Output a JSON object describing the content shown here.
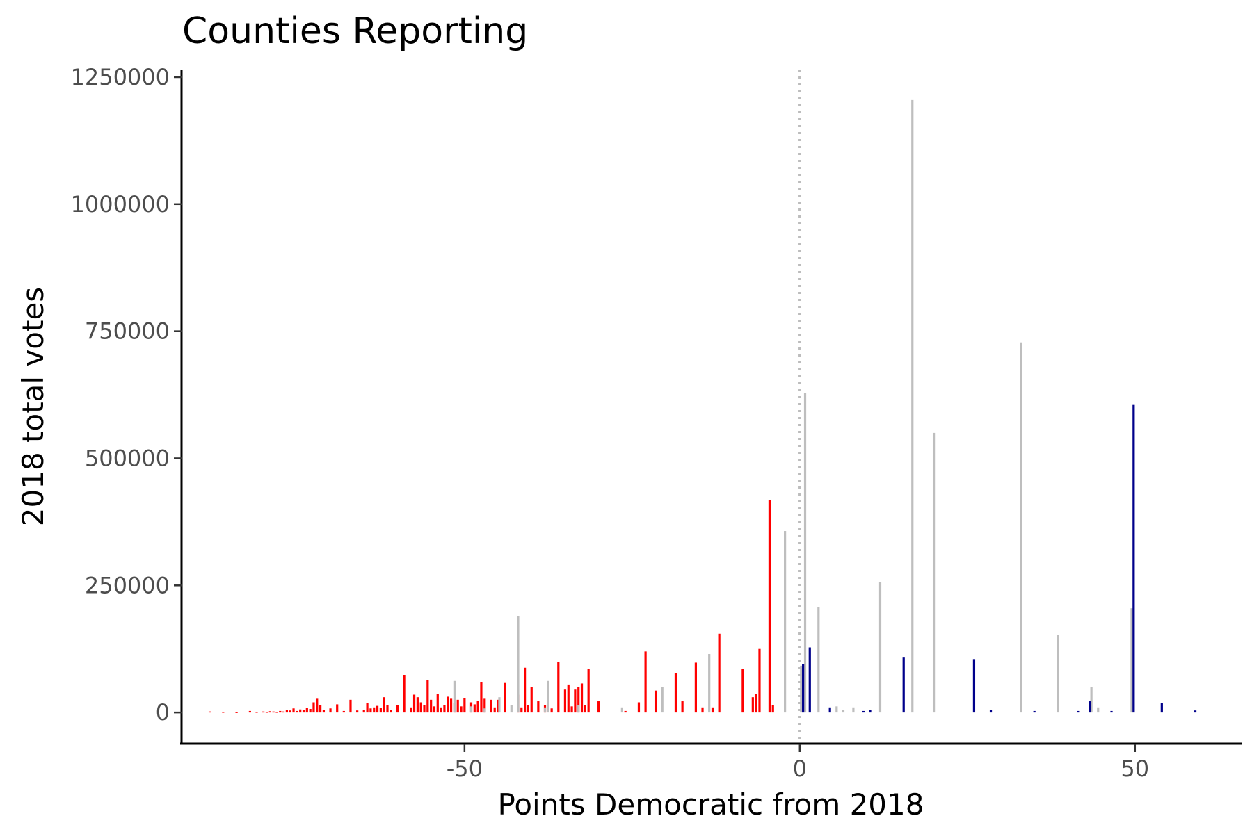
{
  "chart_data": {
    "type": "bar",
    "title": "Counties Reporting",
    "xlabel": "Points Democratic from 2018",
    "ylabel": "2018 total votes",
    "xlim": [
      -92,
      66
    ],
    "ylim": [
      -60000,
      1265000
    ],
    "x_ticks": [
      -50,
      0,
      50
    ],
    "x_tick_labels": [
      "-50",
      "0",
      "50"
    ],
    "y_ticks": [
      0,
      250000,
      500000,
      750000,
      1000000,
      1250000
    ],
    "y_tick_labels": [
      "0",
      "250000",
      "500000",
      "750000",
      "1000000",
      "1250000"
    ],
    "reference_line": {
      "x": 0,
      "style": "dotted"
    },
    "grid": false,
    "legend": "none",
    "series": [
      {
        "color": "#ff0000",
        "points": [
          {
            "x": -88,
            "y": 2000
          },
          {
            "x": -86,
            "y": 1500
          },
          {
            "x": -84,
            "y": 1000
          },
          {
            "x": -82,
            "y": 3000
          },
          {
            "x": -81,
            "y": 1500
          },
          {
            "x": -80,
            "y": 2000
          },
          {
            "x": -79.5,
            "y": 1500
          },
          {
            "x": -79,
            "y": 2500
          },
          {
            "x": -78.5,
            "y": 2000
          },
          {
            "x": -78,
            "y": 1500
          },
          {
            "x": -77.5,
            "y": 3000
          },
          {
            "x": -77,
            "y": 2000
          },
          {
            "x": -76.5,
            "y": 5000
          },
          {
            "x": -76,
            "y": 4000
          },
          {
            "x": -75.5,
            "y": 8000
          },
          {
            "x": -75,
            "y": 3000
          },
          {
            "x": -74.5,
            "y": 6000
          },
          {
            "x": -74,
            "y": 5000
          },
          {
            "x": -73.5,
            "y": 9000
          },
          {
            "x": -73,
            "y": 7000
          },
          {
            "x": -72.5,
            "y": 20000
          },
          {
            "x": -72,
            "y": 27000
          },
          {
            "x": -71.5,
            "y": 15000
          },
          {
            "x": -71,
            "y": 5000
          },
          {
            "x": -70,
            "y": 8000
          },
          {
            "x": -69,
            "y": 16000
          },
          {
            "x": -68,
            "y": 3000
          },
          {
            "x": -67,
            "y": 25000
          },
          {
            "x": -66,
            "y": 4000
          },
          {
            "x": -65,
            "y": 5000
          },
          {
            "x": -64.5,
            "y": 18000
          },
          {
            "x": -64,
            "y": 8000
          },
          {
            "x": -63.5,
            "y": 10000
          },
          {
            "x": -63,
            "y": 13000
          },
          {
            "x": -62.5,
            "y": 9000
          },
          {
            "x": -62,
            "y": 30000
          },
          {
            "x": -61.5,
            "y": 14000
          },
          {
            "x": -61,
            "y": 5000
          },
          {
            "x": -60,
            "y": 15000
          },
          {
            "x": -59,
            "y": 74000
          },
          {
            "x": -58,
            "y": 10000
          },
          {
            "x": -57.5,
            "y": 35000
          },
          {
            "x": -57,
            "y": 30000
          },
          {
            "x": -56.5,
            "y": 20000
          },
          {
            "x": -56,
            "y": 15000
          },
          {
            "x": -55.5,
            "y": 64000
          },
          {
            "x": -55,
            "y": 25000
          },
          {
            "x": -54.5,
            "y": 12000
          },
          {
            "x": -54,
            "y": 36000
          },
          {
            "x": -53.5,
            "y": 10000
          },
          {
            "x": -53,
            "y": 15000
          },
          {
            "x": -52.5,
            "y": 31000
          },
          {
            "x": -52,
            "y": 27000
          },
          {
            "x": -51.5,
            "y": 18000
          },
          {
            "x": -51,
            "y": 25000
          },
          {
            "x": -50.5,
            "y": 12000
          },
          {
            "x": -50,
            "y": 28000
          },
          {
            "x": -49,
            "y": 20000
          },
          {
            "x": -48.5,
            "y": 16000
          },
          {
            "x": -48,
            "y": 23000
          },
          {
            "x": -47.5,
            "y": 60000
          },
          {
            "x": -47,
            "y": 27000
          },
          {
            "x": -46,
            "y": 25000
          },
          {
            "x": -45.5,
            "y": 10000
          },
          {
            "x": -45,
            "y": 25000
          },
          {
            "x": -44,
            "y": 58000
          },
          {
            "x": -42,
            "y": 35000
          },
          {
            "x": -41.5,
            "y": 10000
          },
          {
            "x": -41,
            "y": 88000
          },
          {
            "x": -40.5,
            "y": 15000
          },
          {
            "x": -40,
            "y": 50000
          },
          {
            "x": -39,
            "y": 22000
          },
          {
            "x": -38,
            "y": 15000
          },
          {
            "x": -37,
            "y": 8000
          },
          {
            "x": -36,
            "y": 100000
          },
          {
            "x": -35,
            "y": 45000
          },
          {
            "x": -34.5,
            "y": 55000
          },
          {
            "x": -34,
            "y": 12000
          },
          {
            "x": -33.5,
            "y": 45000
          },
          {
            "x": -33,
            "y": 50000
          },
          {
            "x": -32.5,
            "y": 57000
          },
          {
            "x": -32,
            "y": 15000
          },
          {
            "x": -31.5,
            "y": 85000
          },
          {
            "x": -30,
            "y": 22000
          },
          {
            "x": -26,
            "y": 3000
          },
          {
            "x": -24,
            "y": 20000
          },
          {
            "x": -23,
            "y": 120000
          },
          {
            "x": -21.5,
            "y": 43000
          },
          {
            "x": -18.5,
            "y": 78000
          },
          {
            "x": -17.5,
            "y": 22000
          },
          {
            "x": -15.5,
            "y": 98000
          },
          {
            "x": -14.5,
            "y": 10000
          },
          {
            "x": -13,
            "y": 10000
          },
          {
            "x": -12,
            "y": 155000
          },
          {
            "x": -8.5,
            "y": 85000
          },
          {
            "x": -7,
            "y": 30000
          },
          {
            "x": -6.5,
            "y": 36000
          },
          {
            "x": -6,
            "y": 125000
          },
          {
            "x": -4.5,
            "y": 418000
          },
          {
            "x": -4,
            "y": 15000
          }
        ]
      },
      {
        "color": "#bebebe",
        "points": [
          {
            "x": -51.5,
            "y": 62000
          },
          {
            "x": -49,
            "y": 12000
          },
          {
            "x": -47,
            "y": 8000
          },
          {
            "x": -44.8,
            "y": 30000
          },
          {
            "x": -43,
            "y": 15000
          },
          {
            "x": -42,
            "y": 190000
          },
          {
            "x": -38,
            "y": 10000
          },
          {
            "x": -37.5,
            "y": 62000
          },
          {
            "x": -33,
            "y": 15000
          },
          {
            "x": -26.5,
            "y": 10000
          },
          {
            "x": -20.5,
            "y": 50000
          },
          {
            "x": -13.5,
            "y": 115000
          },
          {
            "x": -2.2,
            "y": 357000
          },
          {
            "x": 0.2,
            "y": 92000
          },
          {
            "x": 0.8,
            "y": 628000
          },
          {
            "x": 2.8,
            "y": 208000
          },
          {
            "x": 5.5,
            "y": 12000
          },
          {
            "x": 6.5,
            "y": 5000
          },
          {
            "x": 8,
            "y": 10000
          },
          {
            "x": 12,
            "y": 256000
          },
          {
            "x": 16.8,
            "y": 1205000
          },
          {
            "x": 20,
            "y": 550000
          },
          {
            "x": 33,
            "y": 728000
          },
          {
            "x": 38.5,
            "y": 152000
          },
          {
            "x": 43.5,
            "y": 50000
          },
          {
            "x": 44.5,
            "y": 10000
          },
          {
            "x": 49.5,
            "y": 205000
          }
        ]
      },
      {
        "color": "#00008b",
        "points": [
          {
            "x": 0.5,
            "y": 95000
          },
          {
            "x": 1.5,
            "y": 128000
          },
          {
            "x": 4.5,
            "y": 10000
          },
          {
            "x": 9.5,
            "y": 3000
          },
          {
            "x": 10.5,
            "y": 5000
          },
          {
            "x": 15.5,
            "y": 108000
          },
          {
            "x": 26,
            "y": 105000
          },
          {
            "x": 28.5,
            "y": 5000
          },
          {
            "x": 35,
            "y": 3000
          },
          {
            "x": 41.5,
            "y": 3000
          },
          {
            "x": 43.3,
            "y": 22000
          },
          {
            "x": 46.5,
            "y": 3000
          },
          {
            "x": 49.8,
            "y": 605000
          },
          {
            "x": 54,
            "y": 18000
          },
          {
            "x": 59,
            "y": 4000
          }
        ]
      }
    ]
  }
}
